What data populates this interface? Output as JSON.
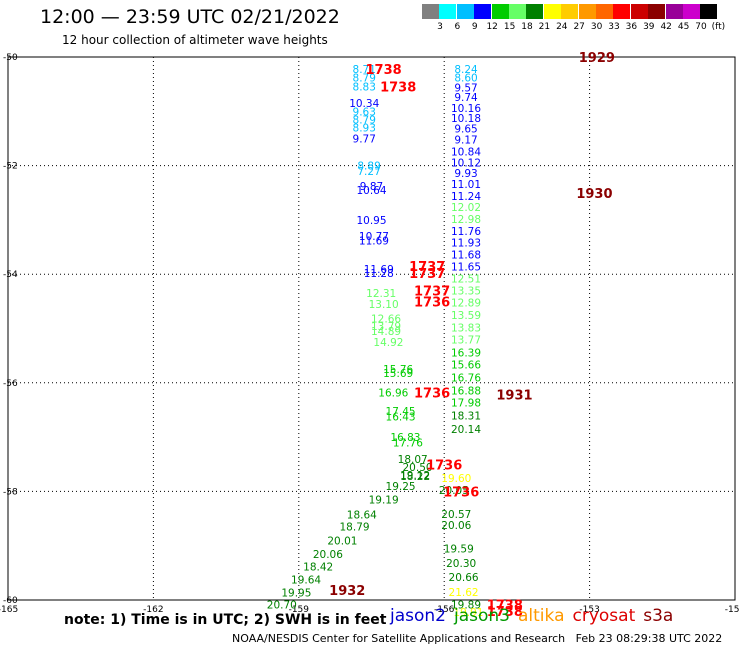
{
  "header": {
    "title": "12:00 — 23:59 UTC 02/21/2022",
    "subtitle": "12 hour collection of altimeter wave heights"
  },
  "color_scale": {
    "labels": [
      "3",
      "6",
      "9",
      "12",
      "15",
      "18",
      "21",
      "24",
      "27",
      "30",
      "33",
      "36",
      "39",
      "42",
      "45",
      "70",
      "(ft)"
    ],
    "colors": [
      "#808080",
      "#00ffff",
      "#00bfff",
      "#0000ff",
      "#00cc00",
      "#66ff66",
      "#008000",
      "#ffff00",
      "#ffcc00",
      "#ff9900",
      "#ff6600",
      "#ff0000",
      "#cc0000",
      "#8b0000",
      "#990099",
      "#cc00cc",
      "#000000"
    ]
  },
  "footer": {
    "note": "note: 1) Time is in UTC; 2) SWH is in feet",
    "credit": "NOAA/NESDIS Center for Satellite Applications and Research   Feb 23 08:29:38 UTC 2022",
    "legend": [
      {
        "name": "jason2",
        "color": "#0000cc"
      },
      {
        "name": "jason3",
        "color": "#009900"
      },
      {
        "name": "altika",
        "color": "#ff9900"
      },
      {
        "name": "cryosat",
        "color": "#dd0000"
      },
      {
        "name": "s3a",
        "color": "#8b0000"
      }
    ]
  },
  "chart_data": {
    "type": "scatter",
    "xlim": [
      -165,
      -150
    ],
    "ylim": [
      -60,
      -50
    ],
    "x_ticks": [
      -165,
      -162,
      -159,
      -156,
      -153,
      -150
    ],
    "y_ticks": [
      -50,
      -52,
      -54,
      -56,
      -58,
      -60
    ],
    "grid": true,
    "points": [
      {
        "x": -157.65,
        "y": -50.22,
        "v": "8.71",
        "c": "#00bfff"
      },
      {
        "x": -157.65,
        "y": -50.38,
        "v": "8.79",
        "c": "#00bfff"
      },
      {
        "x": -157.65,
        "y": -50.54,
        "v": "8.83",
        "c": "#00bfff"
      },
      {
        "x": -157.65,
        "y": -50.85,
        "v": "10.34",
        "c": "#0000ff"
      },
      {
        "x": -157.65,
        "y": -51.0,
        "v": "9.63",
        "c": "#00bfff"
      },
      {
        "x": -157.65,
        "y": -51.15,
        "v": "8.79",
        "c": "#00bfff"
      },
      {
        "x": -157.65,
        "y": -51.3,
        "v": "8.93",
        "c": "#00bfff"
      },
      {
        "x": -157.65,
        "y": -51.5,
        "v": "9.77",
        "c": "#0000ff"
      },
      {
        "x": -157.55,
        "y": -52.0,
        "v": "8.89",
        "c": "#00bfff"
      },
      {
        "x": -157.55,
        "y": -52.1,
        "v": "7.27",
        "c": "#00bfff"
      },
      {
        "x": -157.5,
        "y": -52.38,
        "v": "9.87",
        "c": "#0000ff"
      },
      {
        "x": -157.5,
        "y": -52.45,
        "v": "10.64",
        "c": "#0000ff"
      },
      {
        "x": -157.5,
        "y": -53.0,
        "v": "10.95",
        "c": "#0000ff"
      },
      {
        "x": -157.45,
        "y": -53.3,
        "v": "10.77",
        "c": "#0000ff"
      },
      {
        "x": -157.45,
        "y": -53.38,
        "v": "11.69",
        "c": "#0000ff"
      },
      {
        "x": -157.35,
        "y": -53.9,
        "v": "11.69",
        "c": "#0000ff"
      },
      {
        "x": -157.35,
        "y": -53.98,
        "v": "11.28",
        "c": "#0000ff"
      },
      {
        "x": -157.3,
        "y": -54.35,
        "v": "12.31",
        "c": "#66ff66"
      },
      {
        "x": -157.25,
        "y": -54.55,
        "v": "13.10",
        "c": "#66ff66"
      },
      {
        "x": -157.2,
        "y": -54.82,
        "v": "12.66",
        "c": "#66ff66"
      },
      {
        "x": -157.2,
        "y": -54.95,
        "v": "13.79",
        "c": "#66ff66"
      },
      {
        "x": -157.2,
        "y": -55.05,
        "v": "14.89",
        "c": "#66ff66"
      },
      {
        "x": -157.15,
        "y": -55.25,
        "v": "14.92",
        "c": "#66ff66"
      },
      {
        "x": -156.95,
        "y": -55.75,
        "v": "15.76",
        "c": "#00cc00"
      },
      {
        "x": -156.95,
        "y": -55.82,
        "v": "15.69",
        "c": "#00cc00"
      },
      {
        "x": -157.05,
        "y": -56.18,
        "v": "16.96",
        "c": "#00cc00"
      },
      {
        "x": -156.9,
        "y": -56.52,
        "v": "17.45",
        "c": "#00cc00"
      },
      {
        "x": -156.9,
        "y": -56.62,
        "v": "16.43",
        "c": "#00cc00"
      },
      {
        "x": -156.8,
        "y": -57.0,
        "v": "16.83",
        "c": "#00cc00"
      },
      {
        "x": -156.75,
        "y": -57.1,
        "v": "17.76",
        "c": "#00cc00"
      },
      {
        "x": -156.65,
        "y": -57.4,
        "v": "18.07",
        "c": "#008000"
      },
      {
        "x": -156.55,
        "y": -57.55,
        "v": "20.50",
        "c": "#008000"
      },
      {
        "x": -156.6,
        "y": -57.7,
        "v": "19.12",
        "c": "#008000"
      },
      {
        "x": -156.6,
        "y": -57.72,
        "v": "18.22",
        "c": "#008000"
      },
      {
        "x": -156.9,
        "y": -57.9,
        "v": "19.25",
        "c": "#008000"
      },
      {
        "x": -157.25,
        "y": -58.15,
        "v": "19.19",
        "c": "#008000"
      },
      {
        "x": -157.7,
        "y": -58.43,
        "v": "18.64",
        "c": "#008000"
      },
      {
        "x": -157.85,
        "y": -58.65,
        "v": "18.79",
        "c": "#008000"
      },
      {
        "x": -158.1,
        "y": -58.9,
        "v": "20.01",
        "c": "#008000"
      },
      {
        "x": -158.4,
        "y": -59.15,
        "v": "20.06",
        "c": "#008000"
      },
      {
        "x": -158.6,
        "y": -59.38,
        "v": "18.42",
        "c": "#008000"
      },
      {
        "x": -158.85,
        "y": -59.62,
        "v": "19.64",
        "c": "#008000"
      },
      {
        "x": -159.05,
        "y": -59.86,
        "v": "19.95",
        "c": "#008000"
      },
      {
        "x": -159.35,
        "y": -60.08,
        "v": "20.70",
        "c": "#008000"
      },
      {
        "x": -155.55,
        "y": -50.22,
        "v": "8.24",
        "c": "#00bfff"
      },
      {
        "x": -155.55,
        "y": -50.38,
        "v": "8.60",
        "c": "#00bfff"
      },
      {
        "x": -155.55,
        "y": -50.56,
        "v": "9.57",
        "c": "#0000ff"
      },
      {
        "x": -155.55,
        "y": -50.74,
        "v": "9.74",
        "c": "#0000ff"
      },
      {
        "x": -155.55,
        "y": -50.94,
        "v": "10.16",
        "c": "#0000ff"
      },
      {
        "x": -155.55,
        "y": -51.12,
        "v": "10.18",
        "c": "#0000ff"
      },
      {
        "x": -155.55,
        "y": -51.32,
        "v": "9.65",
        "c": "#0000ff"
      },
      {
        "x": -155.55,
        "y": -51.52,
        "v": "9.17",
        "c": "#0000ff"
      },
      {
        "x": -155.55,
        "y": -51.74,
        "v": "10.84",
        "c": "#0000ff"
      },
      {
        "x": -155.55,
        "y": -51.94,
        "v": "10.12",
        "c": "#0000ff"
      },
      {
        "x": -155.55,
        "y": -52.14,
        "v": "9.93",
        "c": "#0000ff"
      },
      {
        "x": -155.55,
        "y": -52.34,
        "v": "11.01",
        "c": "#0000ff"
      },
      {
        "x": -155.55,
        "y": -52.56,
        "v": "11.24",
        "c": "#0000ff"
      },
      {
        "x": -155.55,
        "y": -52.76,
        "v": "12.02",
        "c": "#66ff66"
      },
      {
        "x": -155.55,
        "y": -52.98,
        "v": "12.98",
        "c": "#66ff66"
      },
      {
        "x": -155.55,
        "y": -53.2,
        "v": "11.76",
        "c": "#0000ff"
      },
      {
        "x": -155.55,
        "y": -53.42,
        "v": "11.93",
        "c": "#0000ff"
      },
      {
        "x": -155.55,
        "y": -53.64,
        "v": "11.68",
        "c": "#0000ff"
      },
      {
        "x": -155.55,
        "y": -53.86,
        "v": "11.65",
        "c": "#0000ff"
      },
      {
        "x": -155.55,
        "y": -54.08,
        "v": "12.51",
        "c": "#66ff66"
      },
      {
        "x": -155.55,
        "y": -54.3,
        "v": "13.35",
        "c": "#66ff66"
      },
      {
        "x": -155.55,
        "y": -54.52,
        "v": "12.89",
        "c": "#66ff66"
      },
      {
        "x": -155.55,
        "y": -54.75,
        "v": "13.59",
        "c": "#66ff66"
      },
      {
        "x": -155.55,
        "y": -54.98,
        "v": "13.83",
        "c": "#66ff66"
      },
      {
        "x": -155.55,
        "y": -55.2,
        "v": "13.77",
        "c": "#66ff66"
      },
      {
        "x": -155.55,
        "y": -55.44,
        "v": "16.39",
        "c": "#00cc00"
      },
      {
        "x": -155.55,
        "y": -55.66,
        "v": "15.66",
        "c": "#00cc00"
      },
      {
        "x": -155.55,
        "y": -55.9,
        "v": "16.76",
        "c": "#00cc00"
      },
      {
        "x": -155.55,
        "y": -56.14,
        "v": "16.88",
        "c": "#00cc00"
      },
      {
        "x": -155.55,
        "y": -56.36,
        "v": "17.98",
        "c": "#00cc00"
      },
      {
        "x": -155.55,
        "y": -56.6,
        "v": "18.31",
        "c": "#008000"
      },
      {
        "x": -155.55,
        "y": -56.85,
        "v": "20.14",
        "c": "#008000"
      },
      {
        "x": -155.75,
        "y": -57.75,
        "v": "19.60",
        "c": "#ffff00"
      },
      {
        "x": -155.8,
        "y": -57.97,
        "v": "20.05",
        "c": "#008000"
      },
      {
        "x": -155.75,
        "y": -58.42,
        "v": "20.57",
        "c": "#008000"
      },
      {
        "x": -155.75,
        "y": -58.62,
        "v": "20.06",
        "c": "#008000"
      },
      {
        "x": -155.7,
        "y": -59.05,
        "v": "19.59",
        "c": "#008000"
      },
      {
        "x": -155.65,
        "y": -59.32,
        "v": "20.30",
        "c": "#008000"
      },
      {
        "x": -155.6,
        "y": -59.58,
        "v": "20.66",
        "c": "#008000"
      },
      {
        "x": -155.6,
        "y": -59.85,
        "v": "21.62",
        "c": "#ffff00"
      },
      {
        "x": -155.55,
        "y": -60.08,
        "v": "19.89",
        "c": "#008000"
      },
      {
        "x": -155.5,
        "y": -60.22,
        "v": "19.91",
        "c": "#ffff00"
      }
    ],
    "time_labels": [
      {
        "x": -157.25,
        "y": -50.22,
        "v": "1738",
        "c": "#ff0000"
      },
      {
        "x": -156.95,
        "y": -50.54,
        "v": "1738",
        "c": "#ff0000"
      },
      {
        "x": -152.85,
        "y": -50.0,
        "v": "1929",
        "c": "#8b0000"
      },
      {
        "x": -152.9,
        "y": -52.5,
        "v": "1930",
        "c": "#8b0000"
      },
      {
        "x": -156.35,
        "y": -53.85,
        "v": "1737",
        "c": "#ff0000"
      },
      {
        "x": -156.35,
        "y": -53.98,
        "v": "1737",
        "c": "#ff0000"
      },
      {
        "x": -156.25,
        "y": -54.3,
        "v": "1737",
        "c": "#ff0000"
      },
      {
        "x": -156.25,
        "y": -54.5,
        "v": "1736",
        "c": "#ff0000"
      },
      {
        "x": -156.25,
        "y": -56.18,
        "v": "1736",
        "c": "#ff0000"
      },
      {
        "x": -154.55,
        "y": -56.22,
        "v": "1931",
        "c": "#8b0000"
      },
      {
        "x": -156.0,
        "y": -57.5,
        "v": "1736",
        "c": "#ff0000"
      },
      {
        "x": -155.65,
        "y": -58.0,
        "v": "1736",
        "c": "#ff0000"
      },
      {
        "x": -158.0,
        "y": -59.82,
        "v": "1932",
        "c": "#8b0000"
      },
      {
        "x": -154.75,
        "y": -60.08,
        "v": "1738",
        "c": "#ff0000"
      },
      {
        "x": -154.75,
        "y": -60.2,
        "v": "1738",
        "c": "#ff0000"
      }
    ]
  }
}
